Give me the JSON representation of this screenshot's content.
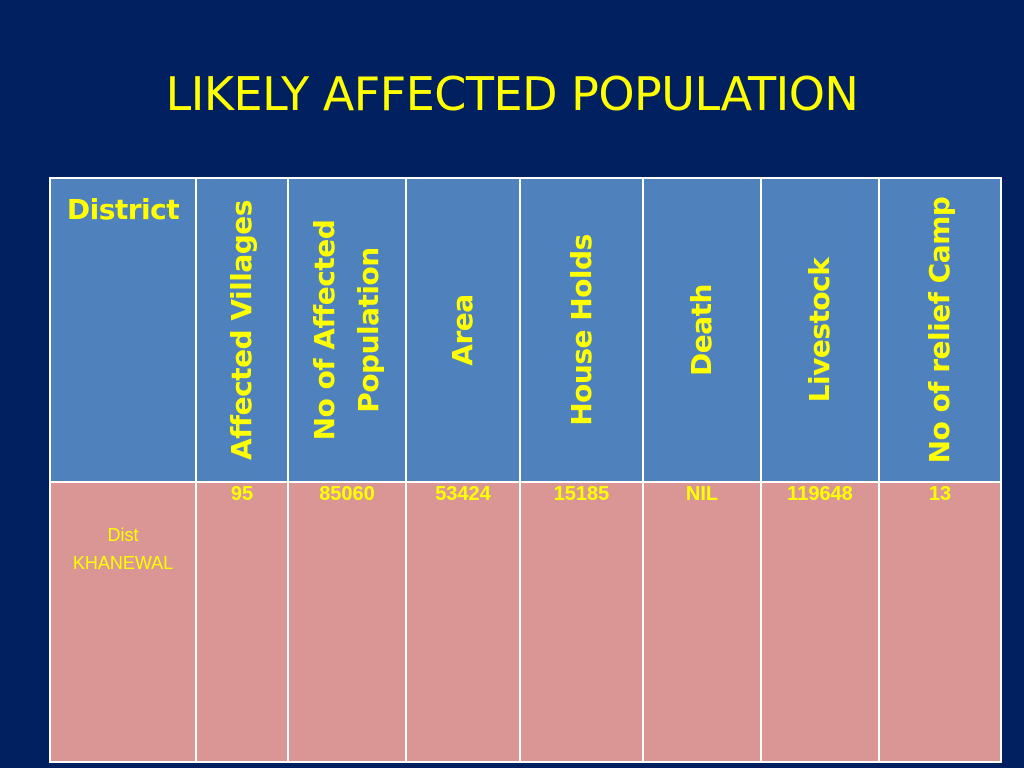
{
  "slide": {
    "title": "LIKELY AFFECTED POPULATION"
  },
  "table": {
    "headers": [
      "District",
      "Affected Villages",
      "No of Affected Population",
      "Area",
      "House Holds",
      "Death",
      "Livestock",
      "No of relief Camp"
    ],
    "rows": [
      {
        "district_line1": "Dist",
        "district_line2": "KHANEWAL",
        "affected_villages": "95",
        "affected_population": "85060",
        "area": "53424",
        "house_holds": "15185",
        "death": "NIL",
        "livestock": "119648",
        "relief_camps": "13"
      }
    ]
  },
  "colors": {
    "background": "#002060",
    "header_fill": "#4f81bd",
    "row_fill": "#d99694",
    "text": "#ffff00"
  }
}
